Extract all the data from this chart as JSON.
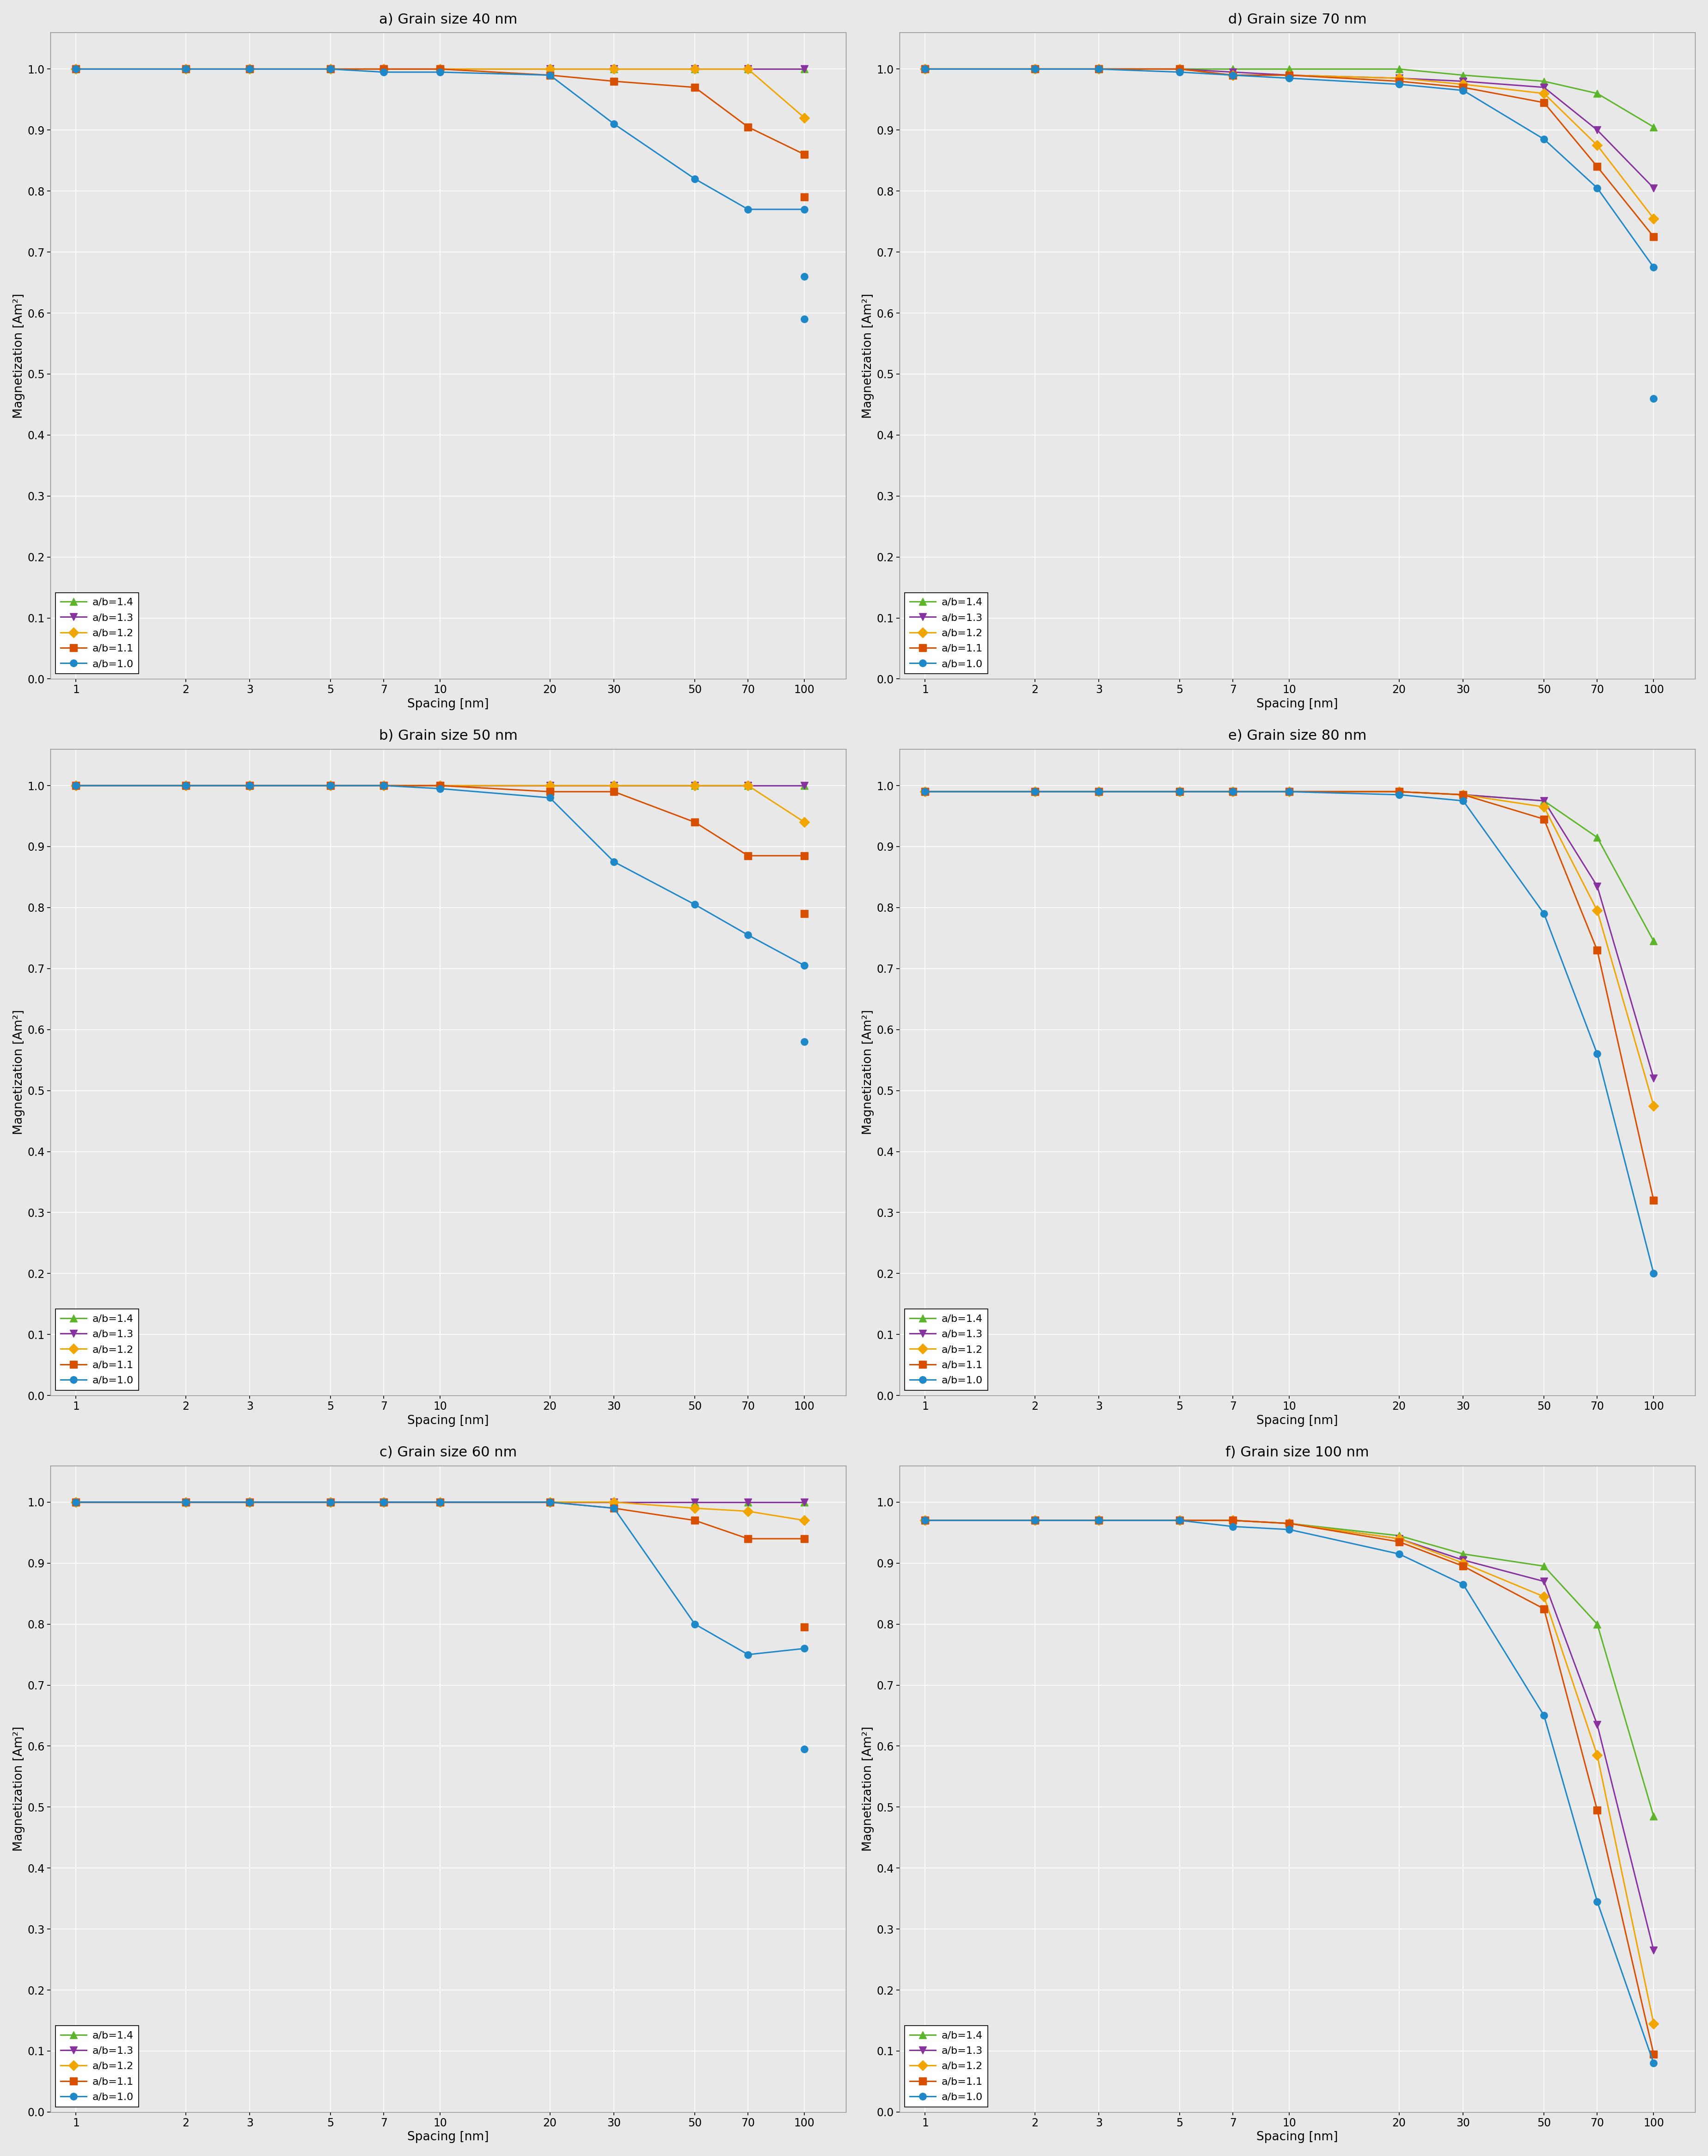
{
  "x_values": [
    1,
    2,
    3,
    5,
    7,
    10,
    20,
    30,
    50,
    70,
    100
  ],
  "panels": [
    {
      "title": "a) Grain size 40 nm",
      "series": {
        "ab14": [
          1.0,
          1.0,
          1.0,
          1.0,
          1.0,
          1.0,
          1.0,
          1.0,
          1.0,
          1.0,
          1.0
        ],
        "ab13": [
          1.0,
          1.0,
          1.0,
          1.0,
          1.0,
          1.0,
          1.0,
          1.0,
          1.0,
          1.0,
          1.0
        ],
        "ab12": [
          1.0,
          1.0,
          1.0,
          1.0,
          1.0,
          1.0,
          1.0,
          1.0,
          1.0,
          1.0,
          0.92
        ],
        "ab11": [
          1.0,
          1.0,
          1.0,
          1.0,
          1.0,
          1.0,
          0.99,
          0.98,
          0.97,
          0.905,
          0.86
        ],
        "ab10": [
          1.0,
          1.0,
          1.0,
          1.0,
          0.995,
          0.995,
          0.99,
          0.91,
          0.82,
          0.77,
          0.77
        ]
      },
      "extra": {
        "ab11": {
          "x": [
            100
          ],
          "y": [
            0.79
          ]
        },
        "ab10": {
          "x": [
            100
          ],
          "y": [
            0.66
          ]
        },
        "ab10b": {
          "x": [
            100
          ],
          "y": [
            0.59
          ]
        }
      }
    },
    {
      "title": "b) Grain size 50 nm",
      "series": {
        "ab14": [
          1.0,
          1.0,
          1.0,
          1.0,
          1.0,
          1.0,
          1.0,
          1.0,
          1.0,
          1.0,
          1.0
        ],
        "ab13": [
          1.0,
          1.0,
          1.0,
          1.0,
          1.0,
          1.0,
          1.0,
          1.0,
          1.0,
          1.0,
          1.0
        ],
        "ab12": [
          1.0,
          1.0,
          1.0,
          1.0,
          1.0,
          1.0,
          1.0,
          1.0,
          1.0,
          1.0,
          0.94
        ],
        "ab11": [
          1.0,
          1.0,
          1.0,
          1.0,
          1.0,
          1.0,
          0.99,
          0.99,
          0.94,
          0.885,
          0.885
        ],
        "ab10": [
          1.0,
          1.0,
          1.0,
          1.0,
          1.0,
          0.995,
          0.98,
          0.875,
          0.805,
          0.755,
          0.705
        ]
      },
      "extra": {
        "ab11": {
          "x": [
            100
          ],
          "y": [
            0.79
          ]
        },
        "ab10": {
          "x": [
            100
          ],
          "y": [
            0.58
          ]
        }
      }
    },
    {
      "title": "c) Grain size 60 nm",
      "series": {
        "ab14": [
          1.0,
          1.0,
          1.0,
          1.0,
          1.0,
          1.0,
          1.0,
          1.0,
          1.0,
          1.0,
          1.0
        ],
        "ab13": [
          1.0,
          1.0,
          1.0,
          1.0,
          1.0,
          1.0,
          1.0,
          1.0,
          1.0,
          1.0,
          1.0
        ],
        "ab12": [
          1.0,
          1.0,
          1.0,
          1.0,
          1.0,
          1.0,
          1.0,
          1.0,
          0.99,
          0.985,
          0.97
        ],
        "ab11": [
          1.0,
          1.0,
          1.0,
          1.0,
          1.0,
          1.0,
          1.0,
          0.99,
          0.97,
          0.94,
          0.94
        ],
        "ab10": [
          1.0,
          1.0,
          1.0,
          1.0,
          1.0,
          1.0,
          1.0,
          0.99,
          0.8,
          0.75,
          0.76
        ]
      },
      "extra": {
        "ab11": {
          "x": [
            100
          ],
          "y": [
            0.795
          ]
        },
        "ab10": {
          "x": [
            100
          ],
          "y": [
            0.595
          ]
        }
      }
    },
    {
      "title": "d) Grain size 70 nm",
      "series": {
        "ab14": [
          1.0,
          1.0,
          1.0,
          1.0,
          1.0,
          1.0,
          1.0,
          0.99,
          0.98,
          0.96,
          0.905
        ],
        "ab13": [
          1.0,
          1.0,
          1.0,
          1.0,
          0.995,
          0.99,
          0.985,
          0.98,
          0.97,
          0.9,
          0.805
        ],
        "ab12": [
          1.0,
          1.0,
          1.0,
          1.0,
          0.99,
          0.99,
          0.985,
          0.975,
          0.96,
          0.875,
          0.755
        ],
        "ab11": [
          1.0,
          1.0,
          1.0,
          1.0,
          0.99,
          0.99,
          0.98,
          0.97,
          0.945,
          0.84,
          0.725
        ],
        "ab10": [
          1.0,
          1.0,
          1.0,
          0.995,
          0.99,
          0.985,
          0.975,
          0.965,
          0.885,
          0.805,
          0.675
        ]
      },
      "extra": {
        "ab10": {
          "x": [
            100
          ],
          "y": [
            0.46
          ]
        }
      }
    },
    {
      "title": "e) Grain size 80 nm",
      "series": {
        "ab14": [
          0.99,
          0.99,
          0.99,
          0.99,
          0.99,
          0.99,
          0.99,
          0.985,
          0.975,
          0.915,
          0.745
        ],
        "ab13": [
          0.99,
          0.99,
          0.99,
          0.99,
          0.99,
          0.99,
          0.99,
          0.985,
          0.975,
          0.835,
          0.52
        ],
        "ab12": [
          0.99,
          0.99,
          0.99,
          0.99,
          0.99,
          0.99,
          0.99,
          0.985,
          0.965,
          0.795,
          0.475
        ],
        "ab11": [
          0.99,
          0.99,
          0.99,
          0.99,
          0.99,
          0.99,
          0.99,
          0.985,
          0.945,
          0.73,
          0.32
        ],
        "ab10": [
          0.99,
          0.99,
          0.99,
          0.99,
          0.99,
          0.99,
          0.985,
          0.975,
          0.79,
          0.56,
          0.2
        ]
      },
      "extra": {}
    },
    {
      "title": "f) Grain size 100 nm",
      "series": {
        "ab14": [
          0.97,
          0.97,
          0.97,
          0.97,
          0.97,
          0.965,
          0.945,
          0.915,
          0.895,
          0.8,
          0.485
        ],
        "ab13": [
          0.97,
          0.97,
          0.97,
          0.97,
          0.97,
          0.965,
          0.94,
          0.905,
          0.87,
          0.635,
          0.265
        ],
        "ab12": [
          0.97,
          0.97,
          0.97,
          0.97,
          0.97,
          0.965,
          0.94,
          0.9,
          0.845,
          0.585,
          0.145
        ],
        "ab11": [
          0.97,
          0.97,
          0.97,
          0.97,
          0.97,
          0.965,
          0.935,
          0.895,
          0.825,
          0.495,
          0.095
        ],
        "ab10": [
          0.97,
          0.97,
          0.97,
          0.97,
          0.96,
          0.955,
          0.915,
          0.865,
          0.65,
          0.345,
          0.08
        ]
      },
      "extra": {}
    }
  ],
  "colors": {
    "ab14": "#5db52b",
    "ab13": "#8832a0",
    "ab12": "#f0a500",
    "ab11": "#d94f00",
    "ab10": "#1e88c9"
  },
  "markers": {
    "ab14": "^",
    "ab13": "v",
    "ab12": "D",
    "ab11": "s",
    "ab10": "o"
  },
  "legend_labels": {
    "ab14": "a/b=1.4",
    "ab13": "a/b=1.3",
    "ab12": "a/b=1.2",
    "ab11": "a/b=1.1",
    "ab10": "a/b=1.0"
  },
  "x_ticks": [
    1,
    2,
    3,
    5,
    7,
    10,
    20,
    30,
    50,
    70,
    100
  ],
  "x_tick_labels": [
    "1",
    "2",
    "3",
    "5",
    "7",
    "10",
    "20",
    "30",
    "50",
    "70",
    "100"
  ],
  "ylabel": "Magnetization [Am²]",
  "xlabel": "Spacing [nm]",
  "ylim": [
    0,
    1.06
  ],
  "yticks": [
    0,
    0.1,
    0.2,
    0.3,
    0.4,
    0.5,
    0.6,
    0.7,
    0.8,
    0.9,
    1
  ],
  "background_color": "#e8e8e8",
  "plot_bg_color": "#e8e8e8",
  "grid_color": "#ffffff",
  "markersize": 11,
  "linewidth": 2.2,
  "title_fontsize": 22,
  "label_fontsize": 19,
  "tick_fontsize": 17,
  "legend_fontsize": 16
}
